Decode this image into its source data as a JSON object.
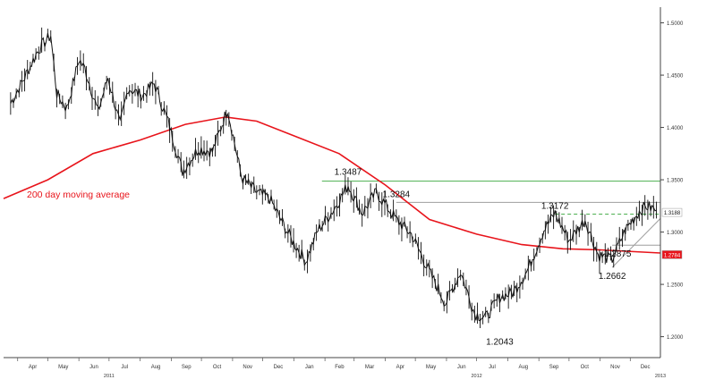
{
  "chart_data": {
    "type": "line",
    "subtype": "ohlc-candlestick",
    "title": "",
    "xlabel": "",
    "ylabel": "",
    "ylim": [
      1.18,
      1.515
    ],
    "y_ticks": [
      "1.5000",
      "1.4500",
      "1.4000",
      "1.3500",
      "1.3000",
      "1.2500",
      "1.2000"
    ],
    "y_tick_values": [
      1.5,
      1.45,
      1.4,
      1.35,
      1.3,
      1.25,
      1.2
    ],
    "x_ticks": [
      "Apr",
      "May",
      "Jun",
      "Jul",
      "Aug",
      "Sep",
      "Oct",
      "Nov",
      "Dec",
      "Jan",
      "Feb",
      "Mar",
      "Apr",
      "May",
      "Jun",
      "Jul",
      "Aug",
      "Sep",
      "Oct",
      "Nov",
      "Dec"
    ],
    "x_years": [
      "2011",
      "2012",
      "2013"
    ],
    "price_series": {
      "name": "",
      "color": "#111111",
      "x": [
        "2011-03-25",
        "2011-04-08",
        "2011-04-22",
        "2011-05-04",
        "2011-05-10",
        "2011-05-20",
        "2011-06-01",
        "2011-06-07",
        "2011-06-20",
        "2011-06-30",
        "2011-07-12",
        "2011-07-20",
        "2011-08-03",
        "2011-08-15",
        "2011-08-29",
        "2011-09-12",
        "2011-09-28",
        "2011-10-12",
        "2011-10-27",
        "2011-11-10",
        "2011-11-25",
        "2011-12-08",
        "2011-12-29",
        "2012-01-13",
        "2012-01-25",
        "2012-02-10",
        "2012-02-24",
        "2012-03-09",
        "2012-03-23",
        "2012-04-12",
        "2012-04-27",
        "2012-05-15",
        "2012-05-31",
        "2012-06-15",
        "2012-06-29",
        "2012-07-10",
        "2012-07-24",
        "2012-08-06",
        "2012-08-20",
        "2012-09-06",
        "2012-09-17",
        "2012-10-01",
        "2012-10-17",
        "2012-10-30",
        "2012-11-13",
        "2012-11-26",
        "2012-12-10",
        "2012-12-17",
        "2012-12-27"
      ],
      "y": [
        1.423,
        1.448,
        1.475,
        1.488,
        1.432,
        1.418,
        1.465,
        1.456,
        1.415,
        1.448,
        1.402,
        1.438,
        1.43,
        1.442,
        1.405,
        1.358,
        1.38,
        1.377,
        1.418,
        1.352,
        1.338,
        1.332,
        1.294,
        1.272,
        1.302,
        1.322,
        1.345,
        1.318,
        1.338,
        1.312,
        1.298,
        1.262,
        1.232,
        1.262,
        1.222,
        1.218,
        1.238,
        1.242,
        1.262,
        1.302,
        1.318,
        1.292,
        1.312,
        1.278,
        1.274,
        1.302,
        1.32,
        1.325,
        1.321
      ]
    },
    "moving_average": {
      "name": "200 day moving average",
      "color": "#e8141b",
      "x": [
        "2011-03-18",
        "2011-05-01",
        "2011-06-15",
        "2011-08-01",
        "2011-09-15",
        "2011-10-25",
        "2011-11-25",
        "2012-01-01",
        "2012-02-15",
        "2012-04-01",
        "2012-05-15",
        "2012-07-01",
        "2012-08-15",
        "2012-09-25",
        "2012-11-01",
        "2012-12-31"
      ],
      "y": [
        1.332,
        1.35,
        1.375,
        1.388,
        1.403,
        1.41,
        1.406,
        1.392,
        1.375,
        1.345,
        1.312,
        1.298,
        1.288,
        1.284,
        1.283,
        1.28
      ]
    },
    "horizontal_levels": [
      {
        "value": 1.3487,
        "color": "#4caf50",
        "style": "solid"
      },
      {
        "value": 1.3284,
        "color": "#9e9e9e",
        "style": "solid"
      },
      {
        "value": 1.3172,
        "color": "#4caf50",
        "style": "dashed"
      },
      {
        "value": 1.2875,
        "color": "#9e9e9e",
        "style": "solid"
      }
    ],
    "annotations": [
      {
        "text": "1.3487",
        "x": "2012-02-24",
        "y": 1.3487
      },
      {
        "text": "1.3284",
        "x": "2012-04-12",
        "y": 1.3284
      },
      {
        "text": "1.3172",
        "x": "2012-09-17",
        "y": 1.3172
      },
      {
        "text": "1.2875",
        "x": "2012-11-13",
        "y": 1.2875
      },
      {
        "text": "1.2662",
        "x": "2012-11-13",
        "y": 1.2662
      },
      {
        "text": "1.2043",
        "x": "2012-07-24",
        "y": 1.2043
      }
    ],
    "price_tags": [
      {
        "text": "1.3188",
        "value": 1.3188,
        "background": "#ffffff",
        "color": "#111111"
      },
      {
        "text": "1.2784",
        "value": 1.2784,
        "background": "#e8141b",
        "color": "#ffffff"
      }
    ],
    "legend_text": "200 day moving average",
    "legend_color": "#e8141b",
    "grid": false
  }
}
